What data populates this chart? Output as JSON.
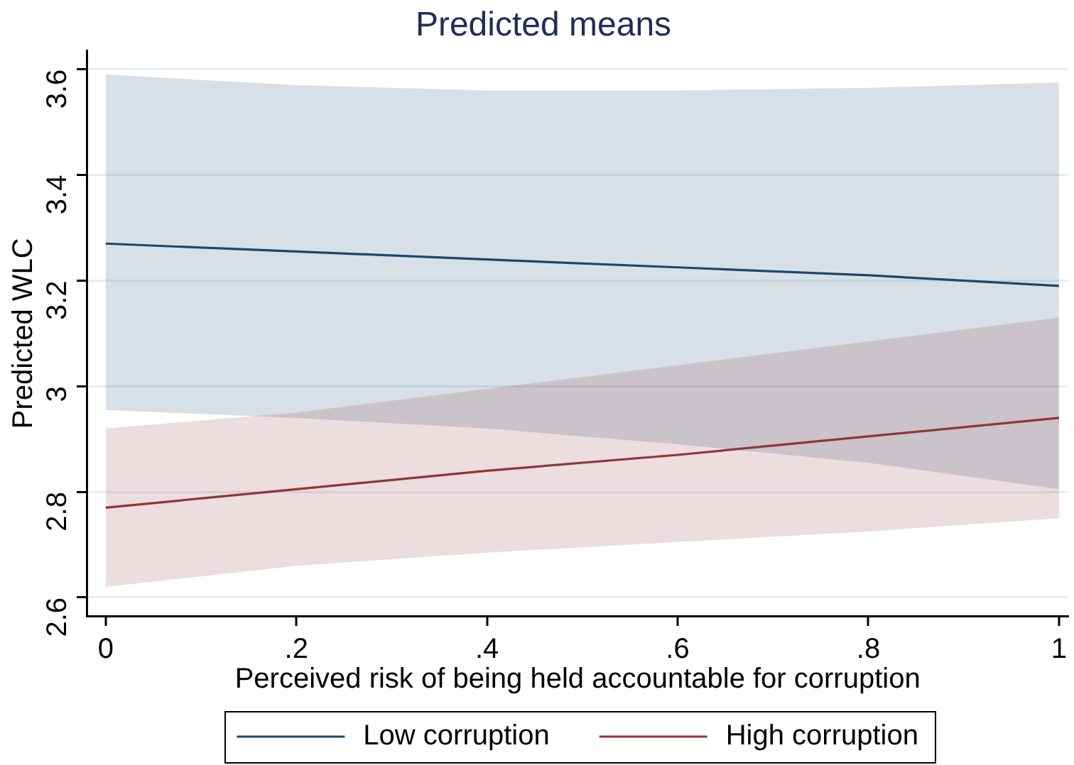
{
  "chart_data": {
    "type": "line",
    "title": "Predicted means",
    "xlabel": "Perceived risk of being held accountable for corruption",
    "ylabel": "Predicted WLC",
    "x": [
      0,
      0.2,
      0.4,
      0.6,
      0.8,
      1
    ],
    "series": [
      {
        "name": "Low corruption",
        "color": "#1a476f",
        "values": [
          3.27,
          3.255,
          3.24,
          3.225,
          3.21,
          3.19
        ],
        "lower": [
          2.955,
          2.94,
          2.92,
          2.89,
          2.855,
          2.805
        ],
        "upper": [
          3.59,
          3.57,
          3.56,
          3.56,
          3.565,
          3.575
        ]
      },
      {
        "name": "High corruption",
        "color": "#90353b",
        "values": [
          2.77,
          2.805,
          2.84,
          2.87,
          2.905,
          2.94
        ],
        "lower": [
          2.62,
          2.66,
          2.685,
          2.705,
          2.725,
          2.75
        ],
        "upper": [
          2.92,
          2.95,
          2.995,
          3.04,
          3.085,
          3.13
        ]
      }
    ],
    "xlim": [
      -0.02,
      1.01
    ],
    "ylim": [
      2.565,
      3.635
    ],
    "xticks": [
      0,
      {
        "value": 0.2,
        "label": ".2"
      },
      {
        "value": 0.4,
        "label": ".4"
      },
      {
        "value": 0.6,
        "label": ".6"
      },
      {
        "value": 0.8,
        "label": ".8"
      },
      1
    ],
    "yticks": [
      2.6,
      2.8,
      3,
      3.2,
      3.4,
      3.6
    ],
    "grid": "y",
    "legend": "bottom",
    "marker": "none",
    "line_style": "solid"
  }
}
